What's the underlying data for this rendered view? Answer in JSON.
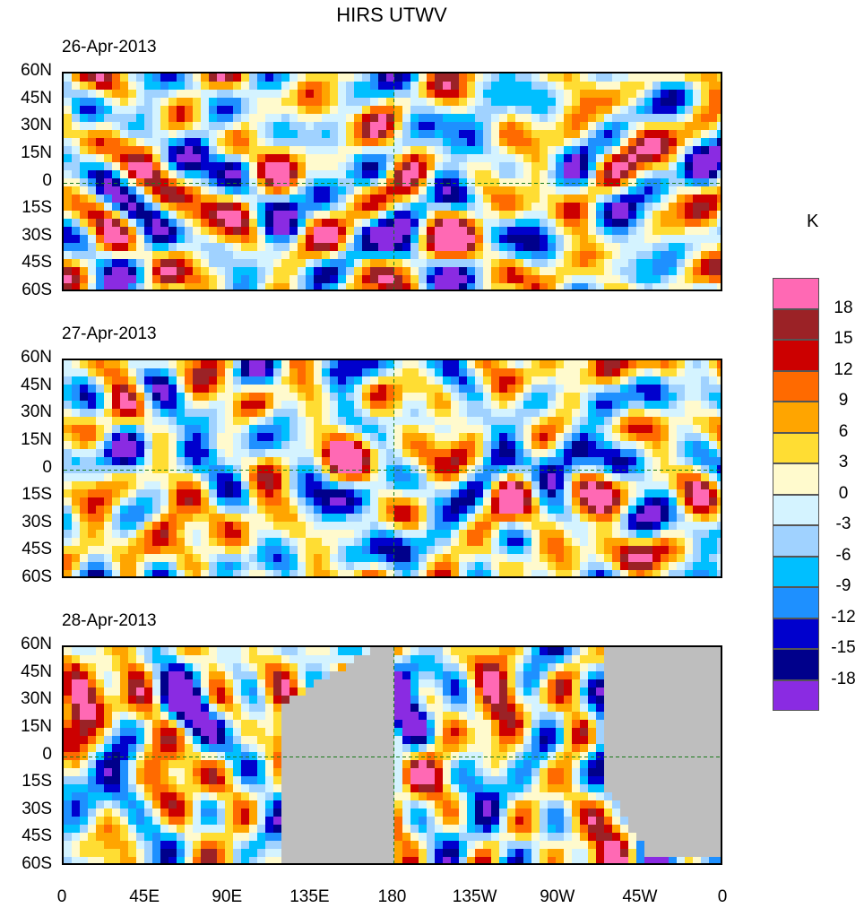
{
  "chart_data": {
    "type": "heatmap",
    "title": "HIRS UTWV",
    "units": "K",
    "panels": [
      {
        "date": "26-Apr-2013",
        "missing_regions": []
      },
      {
        "date": "27-Apr-2013",
        "missing_regions": []
      },
      {
        "date": "28-Apr-2013",
        "missing_regions": [
          "western Pacific swath (~110E-180)",
          "Atlantic swath (~60W-0)",
          "narrow orbit-gap strips"
        ]
      }
    ],
    "x_ticks": [
      "0",
      "45E",
      "90E",
      "135E",
      "180",
      "135W",
      "90W",
      "45W",
      "0"
    ],
    "y_ticks": [
      "60N",
      "45N",
      "30N",
      "15N",
      "0",
      "15S",
      "30S",
      "45S",
      "60S"
    ],
    "xlim": [
      0,
      360
    ],
    "ylim": [
      -60,
      60
    ],
    "colorbar": {
      "levels": [
        18,
        15,
        12,
        9,
        6,
        3,
        0,
        -3,
        -6,
        -9,
        -12,
        -15,
        -18
      ],
      "colors": [
        "#ff69b4",
        "#9b2226",
        "#cc0000",
        "#ff6a00",
        "#ffa500",
        "#ffdd33",
        "#fffacd",
        "#d4f3ff",
        "#a0d2ff",
        "#00bfff",
        "#1e90ff",
        "#0000cd",
        "#00008b",
        "#8a2be2"
      ]
    },
    "missing_color": "#bebebe",
    "coast_color": "#1a7a1a"
  }
}
